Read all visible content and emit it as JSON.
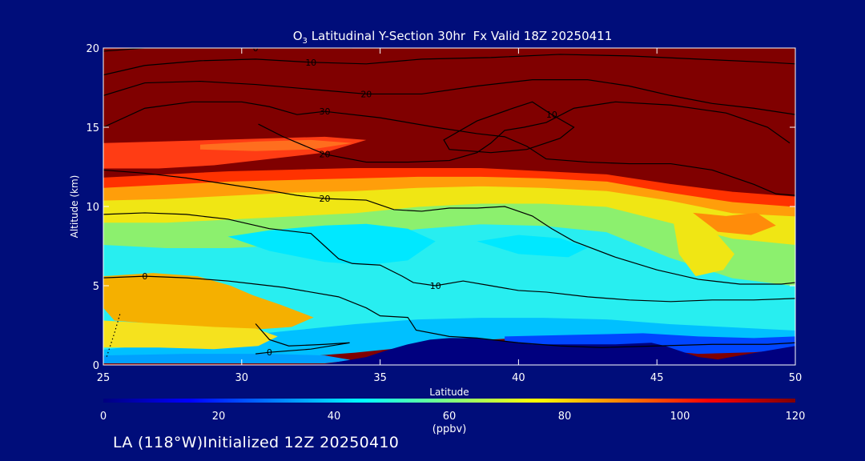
{
  "chart_data": {
    "type": "heatmap",
    "title_main": "O",
    "title_sub": "3",
    "title_rest": " Latitudinal Y-Section 30hr  Fx Valid 18Z 20250411",
    "xlabel": "Latitude",
    "ylabel": "Altitude (km)",
    "xlim": [
      25,
      50
    ],
    "ylim": [
      0,
      20
    ],
    "x_ticks": [
      "25",
      "30",
      "35",
      "40",
      "45",
      "50"
    ],
    "y_ticks": [
      "0",
      "5",
      "10",
      "15",
      "20"
    ],
    "colorbar": {
      "min": 0,
      "max": 120,
      "ticks": [
        "0",
        "20",
        "40",
        "60",
        "80",
        "100",
        "120"
      ],
      "unit": "(ppbv)",
      "colors": [
        "#00007f",
        "#0000ff",
        "#0080ff",
        "#00ffff",
        "#80ff80",
        "#ffff00",
        "#ff8000",
        "#ff0000",
        "#7f0000"
      ]
    },
    "field_layers": [
      {
        "color": "#00c0ff",
        "bottom_km": [
          0.4,
          0.4,
          0.4,
          0.5,
          0.8,
          1.2,
          1.6,
          1.8,
          1.6,
          1.3,
          1.2,
          1.0
        ],
        "top_km": [
          1.0,
          1.4,
          1.8,
          2.2,
          2.6,
          2.9,
          3.0,
          3.0,
          2.9,
          2.6,
          2.4,
          2.2
        ]
      },
      {
        "color": "#28eef0",
        "bottom_km": [
          1.0,
          1.4,
          1.8,
          2.2,
          2.6,
          2.9,
          3.0,
          3.0,
          2.9,
          2.6,
          2.4,
          2.2
        ],
        "top_km": [
          7.6,
          7.4,
          7.4,
          7.6,
          8.0,
          8.6,
          8.9,
          8.8,
          8.4,
          6.8,
          5.5,
          5.0
        ]
      },
      {
        "color": "#8cf06e",
        "bottom_km": [
          7.6,
          7.4,
          7.4,
          7.6,
          8.0,
          8.6,
          8.9,
          8.8,
          8.4,
          6.8,
          5.5,
          5.0
        ],
        "top_km": [
          9.0,
          9.0,
          9.2,
          9.4,
          9.6,
          10.0,
          10.2,
          10.2,
          10.0,
          9.0,
          8.0,
          7.6
        ]
      },
      {
        "color": "#f0e614",
        "bottom_km": [
          9.0,
          9.0,
          9.2,
          9.4,
          9.6,
          10.0,
          10.2,
          10.2,
          10.0,
          9.0,
          8.0,
          7.6
        ],
        "top_km": [
          10.4,
          10.5,
          10.7,
          10.9,
          11.0,
          11.2,
          11.3,
          11.2,
          11.0,
          10.4,
          9.6,
          9.4
        ]
      },
      {
        "color": "#ff9e0a",
        "bottom_km": [
          10.4,
          10.5,
          10.7,
          10.9,
          11.0,
          11.2,
          11.3,
          11.2,
          11.0,
          10.4,
          9.6,
          9.4
        ],
        "top_km": [
          11.2,
          11.4,
          11.6,
          11.7,
          11.8,
          11.9,
          11.9,
          11.8,
          11.6,
          10.9,
          10.3,
          10.0
        ]
      },
      {
        "color": "#ff3200",
        "bottom_km": [
          11.2,
          11.4,
          11.6,
          11.7,
          11.8,
          11.9,
          11.9,
          11.8,
          11.6,
          10.9,
          10.3,
          10.0
        ],
        "top_km": [
          11.8,
          12.0,
          12.2,
          12.3,
          12.4,
          12.4,
          12.4,
          12.2,
          12.0,
          11.4,
          10.9,
          10.6
        ]
      }
    ],
    "field_patches": [
      {
        "color": "#f5b000",
        "lat": [
          25.0,
          26.8,
          28.4,
          29.6,
          30.4,
          31.4,
          32.6,
          31.8,
          30.2,
          28.5,
          26.8,
          25.4,
          25.0
        ],
        "alt": [
          5.6,
          5.8,
          5.6,
          5.0,
          4.4,
          3.8,
          3.0,
          2.4,
          2.2,
          2.4,
          2.6,
          2.8,
          3.6
        ]
      },
      {
        "color": "#f5e21e",
        "lat": [
          25.0,
          27.0,
          29.0,
          30.5,
          31.3,
          30.6,
          29.0,
          27.0,
          25.0
        ],
        "alt": [
          2.8,
          2.6,
          2.4,
          2.3,
          1.8,
          1.2,
          1.0,
          1.1,
          1.1
        ]
      },
      {
        "color": "#00e8ff",
        "lat": [
          29.5,
          31.0,
          33.0,
          34.5,
          36.0,
          37.0,
          36.0,
          34.5,
          33.0,
          31.0
        ],
        "alt": [
          8.1,
          8.5,
          8.8,
          8.9,
          8.6,
          7.8,
          6.6,
          6.3,
          6.5,
          7.2
        ]
      },
      {
        "color": "#00e8ff",
        "lat": [
          38.5,
          40.0,
          41.5,
          42.5,
          41.8,
          40.0
        ],
        "alt": [
          7.8,
          8.2,
          8.0,
          7.4,
          6.8,
          7.0
        ]
      },
      {
        "color": "#f0e614",
        "lat": [
          45.6,
          46.4,
          47.2,
          47.8,
          47.4,
          46.4,
          45.8
        ],
        "alt": [
          9.0,
          8.8,
          8.2,
          7.0,
          6.0,
          5.6,
          7.0
        ]
      },
      {
        "color": "#ff8c0a",
        "lat": [
          46.3,
          47.5,
          48.6,
          49.3,
          48.4,
          47.2
        ],
        "alt": [
          9.6,
          9.4,
          9.6,
          8.8,
          8.2,
          8.4
        ]
      },
      {
        "color": "#ff3c14",
        "lat": [
          25.0,
          27.0,
          29.0,
          31.0,
          33.0,
          34.5,
          33.0,
          31.0,
          29.0,
          27.0,
          25.0
        ],
        "alt": [
          14.0,
          14.1,
          14.2,
          14.3,
          14.4,
          14.2,
          13.4,
          13.0,
          12.6,
          12.4,
          12.4
        ]
      },
      {
        "color": "#ff6e1e",
        "lat": [
          28.5,
          30.5,
          32.5,
          34.0,
          32.5,
          30.5,
          28.5
        ],
        "alt": [
          13.9,
          14.1,
          14.2,
          14.0,
          13.6,
          13.5,
          13.6
        ]
      },
      {
        "color": "#0046ff",
        "lat": [
          39.5,
          42.0,
          44.5,
          46.5,
          48.5,
          50.0,
          50.0,
          48.5,
          46.5,
          44.5,
          42.0,
          39.5
        ],
        "alt": [
          1.8,
          1.9,
          2.0,
          1.8,
          1.7,
          1.8,
          1.0,
          0.8,
          0.7,
          1.0,
          1.2,
          1.3
        ]
      },
      {
        "color": "#00a0ff",
        "lat": [
          25.0,
          28.0,
          31.0,
          33.0,
          34.0,
          33.0,
          30.0,
          27.0,
          25.0
        ],
        "alt": [
          0.6,
          0.7,
          0.7,
          0.6,
          0.3,
          0.1,
          0.1,
          0.1,
          0.1
        ]
      }
    ],
    "terrain": {
      "color": "#00007f",
      "lat": [
        25.0,
        30.0,
        33.0,
        34.5,
        35.2,
        36.0,
        36.8,
        37.5,
        38.5,
        39.5,
        40.5,
        42.0,
        43.5,
        44.8,
        45.3,
        45.8,
        46.5,
        47.2,
        48.0,
        49.0,
        50.0
      ],
      "alt": [
        0.0,
        0.0,
        0.05,
        0.5,
        0.9,
        1.3,
        1.6,
        1.7,
        1.7,
        1.5,
        1.3,
        1.3,
        1.3,
        1.4,
        1.2,
        0.9,
        0.5,
        0.35,
        0.6,
        0.9,
        1.2
      ]
    },
    "contours": [
      {
        "lat": [
          25.0,
          26.5,
          28.5,
          30.5,
          32.5,
          34.0
        ],
        "alt": [
          19.8,
          20.0,
          20.0,
          20.0,
          20.0,
          20.0
        ],
        "label": "0",
        "label_index": 3
      },
      {
        "lat": [
          25.0,
          26.5,
          28.5,
          30.5,
          32.5,
          34.5,
          36.5,
          39.0,
          41.5,
          44.0,
          46.5,
          49.0,
          50.0
        ],
        "alt": [
          18.3,
          18.9,
          19.2,
          19.3,
          19.1,
          19.0,
          19.3,
          19.4,
          19.6,
          19.5,
          19.3,
          19.1,
          19.0
        ],
        "label": "10",
        "label_index": 4
      },
      {
        "lat": [
          25.0,
          26.5,
          28.5,
          30.5,
          32.5,
          34.5,
          36.5,
          38.5,
          40.5,
          42.5,
          44.0,
          45.5,
          47.0,
          48.5,
          50.0
        ],
        "alt": [
          17.0,
          17.8,
          17.9,
          17.7,
          17.4,
          17.1,
          17.1,
          17.6,
          18.0,
          18.0,
          17.6,
          17.0,
          16.5,
          16.2,
          15.8
        ],
        "label": "20",
        "label_index": 5
      },
      {
        "lat": [
          25.0,
          26.5,
          28.2,
          30.0,
          31.0,
          32.0,
          33.0,
          35.0,
          37.0,
          38.5,
          39.5,
          40.3,
          41.0,
          42.5,
          44.0,
          45.5,
          47.0,
          48.5,
          49.3,
          50.0
        ],
        "alt": [
          15.0,
          16.2,
          16.6,
          16.6,
          16.3,
          15.8,
          16.0,
          15.6,
          15.0,
          14.6,
          14.4,
          13.8,
          13.0,
          12.8,
          12.7,
          12.7,
          12.3,
          11.4,
          10.8,
          10.7
        ],
        "label": "30",
        "label_index": 6
      },
      {
        "lat": [
          30.6,
          31.5,
          33.0,
          34.5,
          36.0,
          37.5,
          38.5,
          39.0,
          39.5,
          40.2,
          41.0,
          42.0,
          43.5,
          45.5,
          47.5,
          49.0,
          49.8
        ],
        "alt": [
          15.2,
          14.4,
          13.3,
          12.8,
          12.8,
          12.9,
          13.4,
          14.0,
          14.8,
          15.0,
          15.3,
          16.2,
          16.6,
          16.4,
          15.9,
          15.0,
          14.0
        ],
        "label": "20",
        "label_index": 2
      },
      {
        "lat": [
          39.8,
          40.5,
          41.2,
          42.0,
          41.5,
          40.3,
          39.0,
          37.5,
          37.3,
          38.5,
          39.8
        ],
        "alt": [
          16.2,
          16.6,
          15.8,
          15.0,
          14.3,
          13.6,
          13.4,
          13.6,
          14.2,
          15.4,
          16.2
        ],
        "label": "10",
        "label_index": 2
      },
      {
        "lat": [
          25.0,
          26.5,
          28.0,
          29.5,
          31.0,
          32.0,
          33.0,
          34.5,
          35.5,
          36.5,
          37.5,
          38.5,
          39.5,
          40.5,
          41.2,
          42.0,
          43.5,
          45.0,
          46.5,
          48.0,
          49.5,
          50.0
        ],
        "alt": [
          12.3,
          12.1,
          11.8,
          11.4,
          11.0,
          10.7,
          10.5,
          10.4,
          9.8,
          9.7,
          9.9,
          9.9,
          10.0,
          9.4,
          8.6,
          7.8,
          6.8,
          6.0,
          5.4,
          5.1,
          5.1,
          5.2
        ],
        "label": "20",
        "label_index": 6
      },
      {
        "lat": [
          25.0,
          26.5,
          28.0,
          29.5,
          31.0,
          32.5,
          33.0,
          33.5,
          34.0,
          35.0,
          35.8,
          36.2,
          37.0,
          38.0,
          39.0,
          40.0,
          41.0,
          42.5,
          44.0,
          45.5,
          47.0,
          48.5,
          50.0
        ],
        "alt": [
          9.5,
          9.6,
          9.5,
          9.2,
          8.6,
          8.3,
          7.5,
          6.7,
          6.4,
          6.3,
          5.6,
          5.2,
          5.0,
          5.3,
          5.0,
          4.7,
          4.6,
          4.3,
          4.1,
          4.0,
          4.1,
          4.1,
          4.2
        ],
        "label": "10",
        "label_index": 12
      },
      {
        "lat": [
          25.0,
          26.5,
          28.0,
          29.5,
          30.5,
          31.5,
          32.5,
          33.5,
          34.5,
          35.0,
          36.0,
          36.3,
          37.5,
          38.5,
          40.0,
          41.5,
          43.0,
          45.0,
          47.0,
          49.0,
          50.0
        ],
        "alt": [
          5.5,
          5.6,
          5.5,
          5.3,
          5.1,
          4.9,
          4.6,
          4.3,
          3.6,
          3.1,
          3.0,
          2.2,
          1.8,
          1.7,
          1.4,
          1.2,
          1.1,
          1.2,
          1.3,
          1.3,
          1.4
        ],
        "label": "0",
        "label_index": 1
      },
      {
        "lat": [
          30.5,
          31.0,
          31.7,
          33.0,
          33.9,
          32.5,
          31.0,
          30.5
        ],
        "alt": [
          2.6,
          1.6,
          1.2,
          1.3,
          1.4,
          1.0,
          0.8,
          0.7
        ],
        "label": "0",
        "label_index": 6
      },
      {
        "lat": [
          25.6,
          25.4,
          25.1
        ],
        "alt": [
          3.2,
          2.0,
          0.4
        ],
        "label": "",
        "label_index": 0,
        "dash": true
      }
    ],
    "footer": "LA (118°W)Initialized 12Z 20250410"
  }
}
